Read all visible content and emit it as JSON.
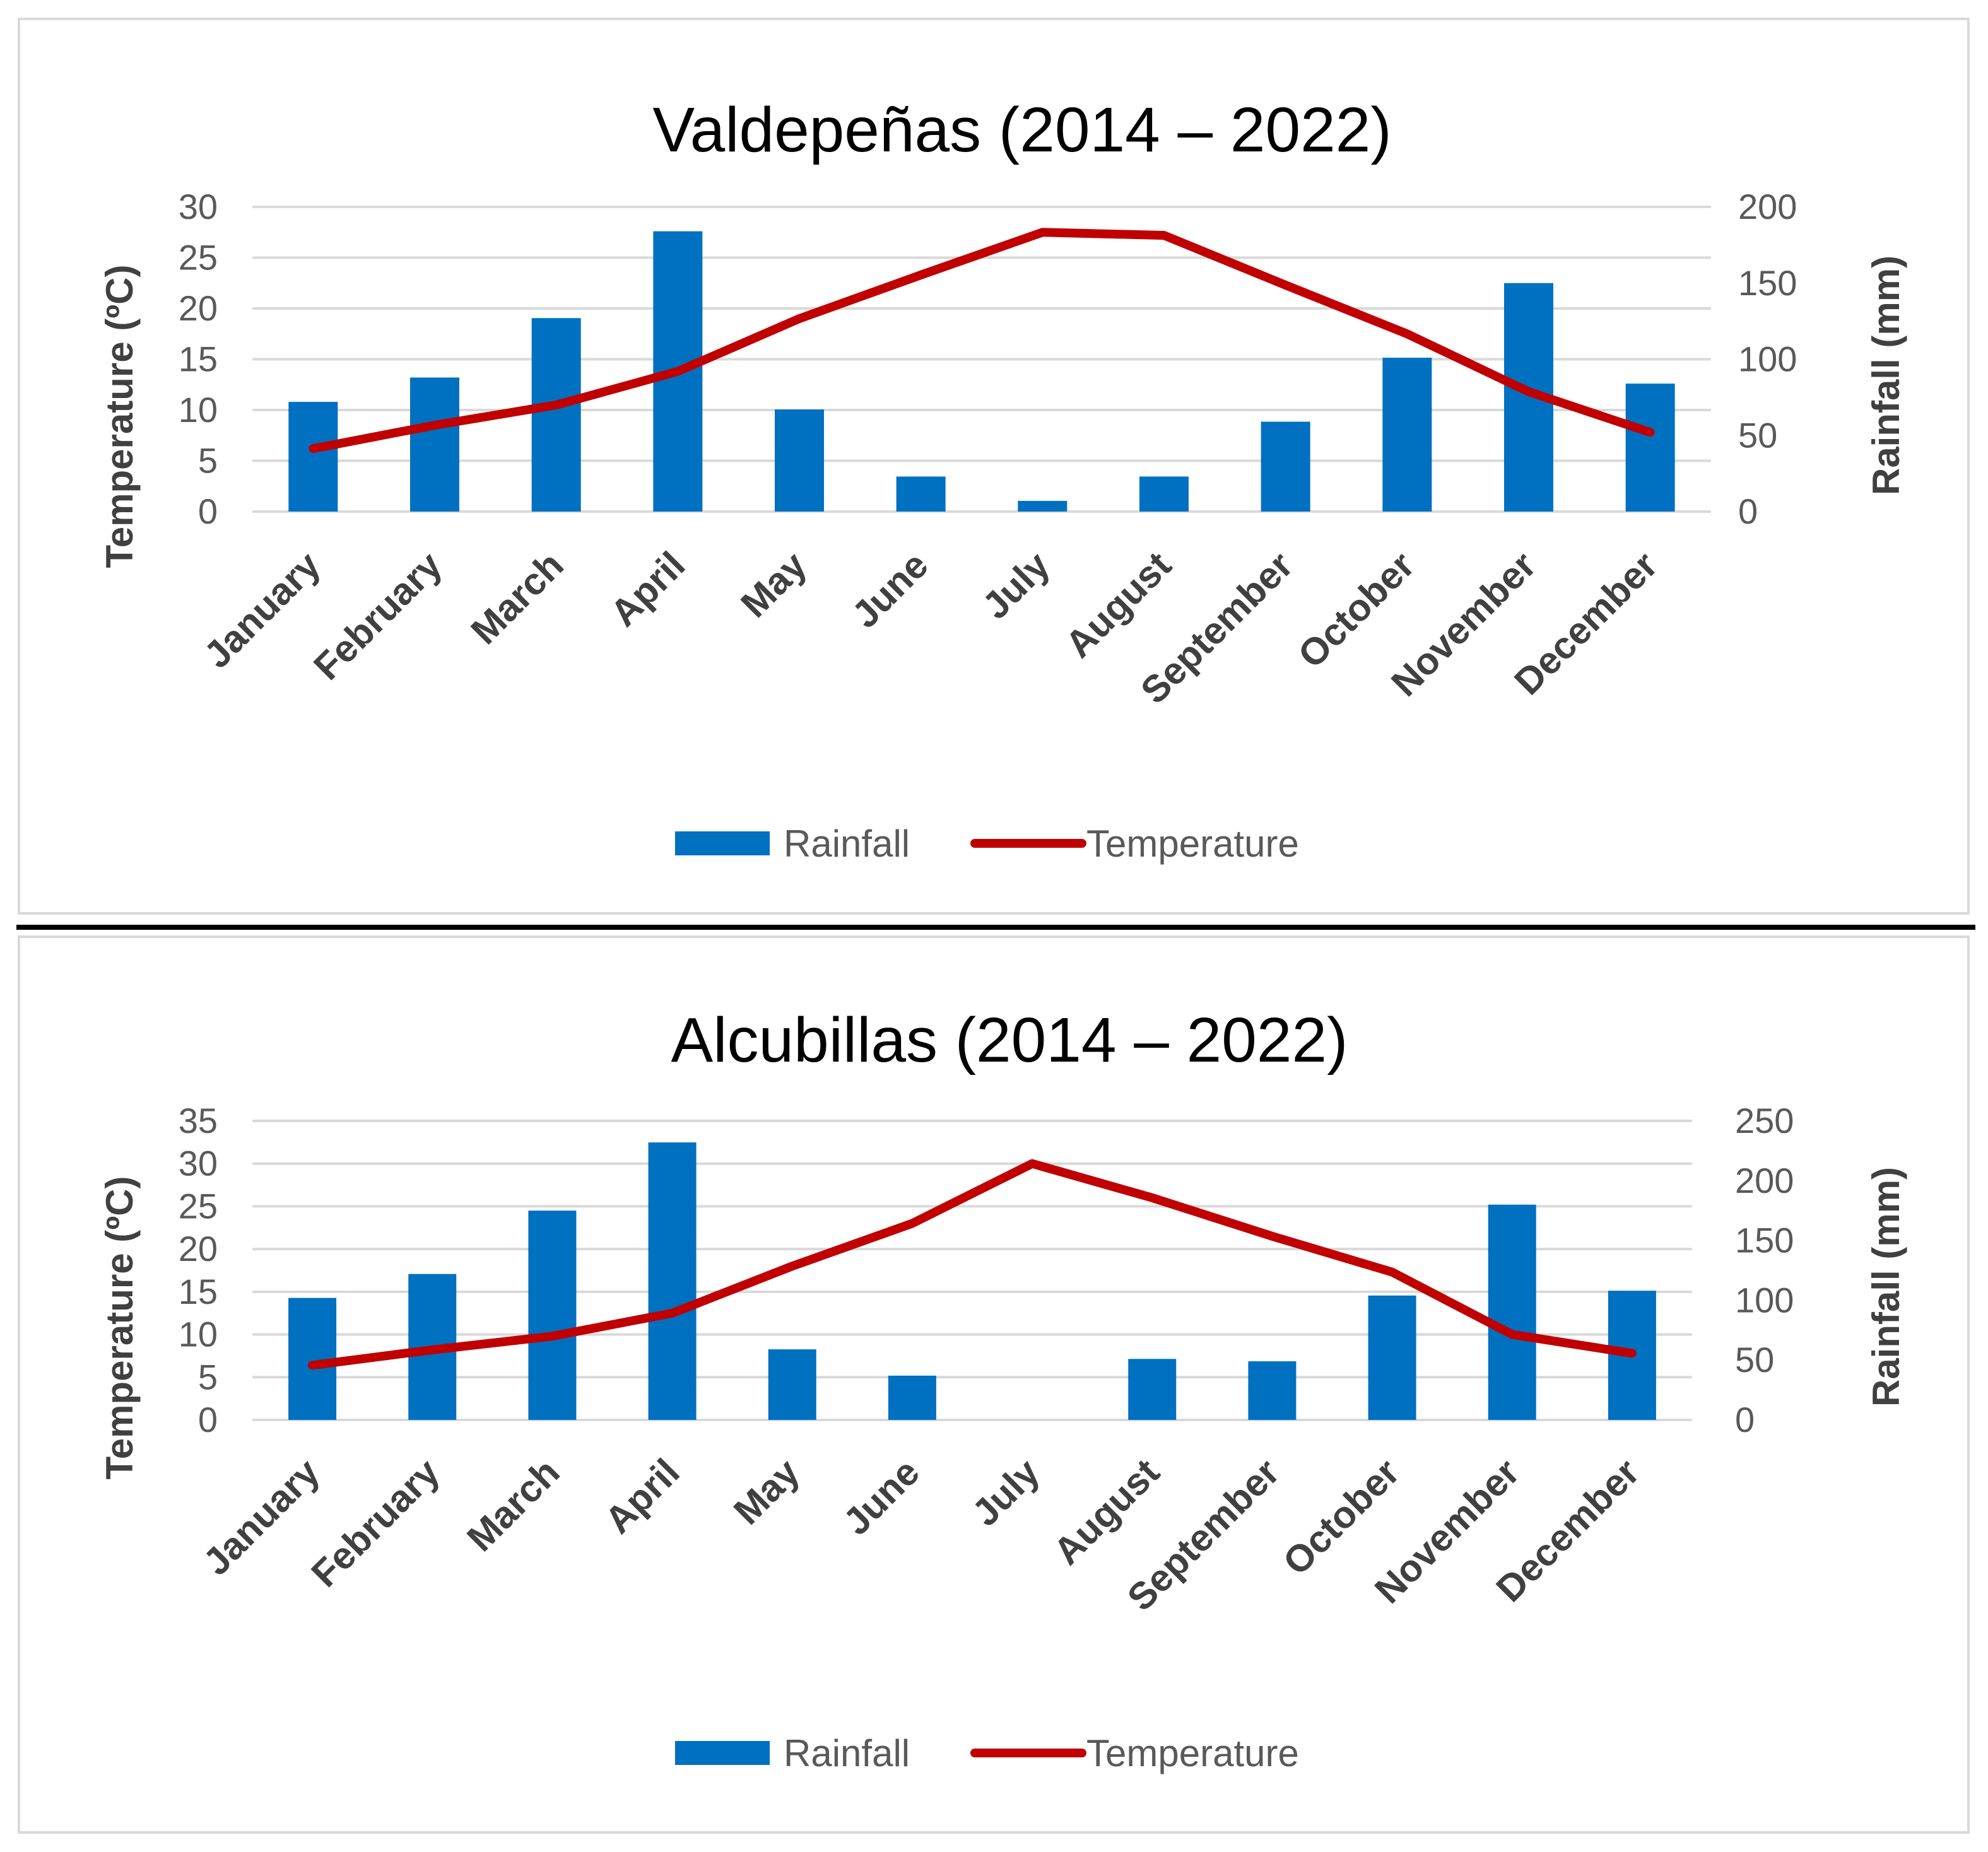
{
  "chart_data": [
    {
      "type": "bar+line",
      "title": "Valdepeñas (2014 – 2022)",
      "categories": [
        "January",
        "February",
        "March",
        "April",
        "May",
        "June",
        "July",
        "August",
        "September",
        "October",
        "November",
        "December"
      ],
      "series": [
        {
          "name": "Rainfall",
          "kind": "bar",
          "axis": "right",
          "color": "#0070C0",
          "values": [
            72,
            88,
            127,
            184,
            67,
            23,
            7,
            23,
            59,
            101,
            150,
            84
          ]
        },
        {
          "name": "Temperature",
          "kind": "line",
          "axis": "left",
          "color": "#C00000",
          "values": [
            6.2,
            8.5,
            10.5,
            13.8,
            19.0,
            23.3,
            27.5,
            27.2,
            22.3,
            17.5,
            11.8,
            7.8
          ]
        }
      ],
      "ylabel_left": "Temperature (ºC)",
      "ylabel_right": "Rainfall (mm)",
      "ylim_left": [
        0,
        30
      ],
      "ylim_right": [
        0,
        200
      ],
      "yticks_left": [
        0,
        5,
        10,
        15,
        20,
        25,
        30
      ],
      "yticks_right": [
        0,
        50,
        100,
        150,
        200
      ],
      "grid": true,
      "legend": [
        "Rainfall",
        "Temperature"
      ],
      "legend_position": "bottom"
    },
    {
      "type": "bar+line",
      "title": "Alcubillas (2014 – 2022)",
      "categories": [
        "January",
        "February",
        "March",
        "April",
        "May",
        "June",
        "July",
        "August",
        "September",
        "October",
        "November",
        "December"
      ],
      "series": [
        {
          "name": "Rainfall",
          "kind": "bar",
          "axis": "right",
          "color": "#0070C0",
          "values": [
            102,
            122,
            175,
            232,
            59,
            37,
            0,
            51,
            49,
            104,
            180,
            108
          ]
        },
        {
          "name": "Temperature",
          "kind": "line",
          "axis": "left",
          "color": "#C00000",
          "values": [
            6.4,
            8.2,
            9.8,
            12.5,
            18.0,
            23.0,
            30.0,
            26.0,
            21.5,
            17.3,
            10.0,
            7.8
          ]
        }
      ],
      "ylabel_left": "Temperature (ºC)",
      "ylabel_right": "Rainfall (mm)",
      "ylim_left": [
        0,
        35
      ],
      "ylim_right": [
        0,
        250
      ],
      "yticks_left": [
        0,
        5,
        10,
        15,
        20,
        25,
        30,
        35
      ],
      "yticks_right": [
        0,
        50,
        100,
        150,
        200,
        250
      ],
      "grid": true,
      "legend": [
        "Rainfall",
        "Temperature"
      ],
      "legend_position": "bottom"
    }
  ]
}
